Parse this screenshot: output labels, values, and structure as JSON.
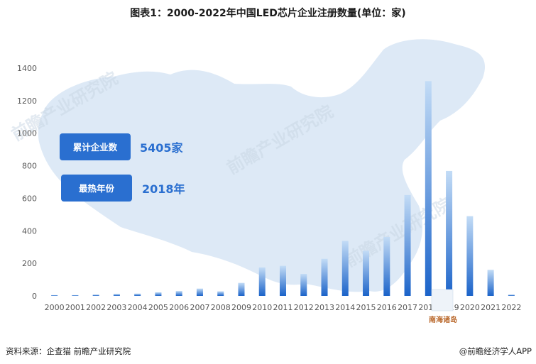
{
  "title": "图表1：2000-2022年中国LED芯片企业注册数量(单位：家)",
  "footer": {
    "source": "资料来源：企查猫 前瞻产业研究院",
    "brand": "@前瞻经济学人APP"
  },
  "callouts": [
    {
      "label": "累计企业数",
      "value": "5405家"
    },
    {
      "label": "最热年份",
      "value": "2018年"
    }
  ],
  "map_label": "南海诸岛",
  "watermark": "前瞻产业研究院",
  "colors": {
    "bar_top": "#c3dcf6",
    "bar_bottom": "#1b63c9",
    "map": "#dde9f6",
    "callout": "#2a6fd0",
    "callout_value": "#2a6fd0"
  },
  "chart_data": {
    "type": "bar",
    "categories": [
      "2000",
      "2001",
      "2002",
      "2003",
      "2004",
      "2005",
      "2006",
      "2007",
      "2008",
      "2009",
      "2010",
      "2011",
      "2012",
      "2013",
      "2014",
      "2015",
      "2016",
      "2017",
      "2018",
      "2019",
      "2020",
      "2021",
      "2022"
    ],
    "series": [
      {
        "values": [
          5,
          5,
          8,
          12,
          14,
          22,
          30,
          45,
          28,
          80,
          175,
          185,
          135,
          228,
          338,
          278,
          362,
          620,
          1320,
          768,
          490,
          160,
          8
        ]
      }
    ],
    "ylim": [
      0,
      1400
    ],
    "yticks": [
      0,
      200,
      400,
      600,
      800,
      1000,
      1200,
      1400
    ],
    "xlabel": "",
    "ylabel": "",
    "grid": false,
    "legend": "none"
  }
}
